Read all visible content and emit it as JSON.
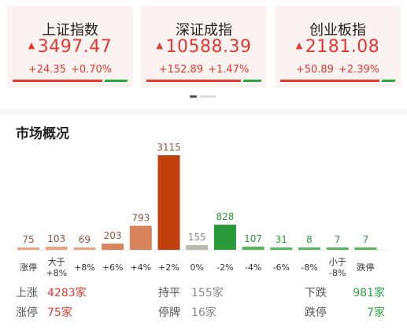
{
  "indices": [
    {
      "name": "上证指数",
      "price": "3497.47",
      "change": "+24.35",
      "pct": "+0.70%",
      "arrow": "▲",
      "red_fraction": 0.78
    },
    {
      "name": "深证成指",
      "price": "10588.39",
      "change": "+152.89",
      "pct": "+1.47%",
      "arrow": "▲",
      "red_fraction": 0.82
    },
    {
      "name": "创业板指",
      "price": "2181.08",
      "change": "+50.89",
      "pct": "+2.39%",
      "arrow": "▲",
      "red_fraction": 0.86
    }
  ],
  "section": {
    "title": "市场概况"
  },
  "chart_data": {
    "type": "bar",
    "categories": [
      "涨停",
      "大于\n+8%",
      "+8%",
      "+6%",
      "+4%",
      "+2%",
      "0%",
      "-2%",
      "-4%",
      "-6%",
      "-8%",
      "小于\n-8%",
      "跌停"
    ],
    "values": [
      75,
      103,
      69,
      203,
      793,
      3115,
      155,
      828,
      107,
      31,
      8,
      7,
      7
    ],
    "colors": [
      "#e8a585",
      "#e8a585",
      "#e8a585",
      "#d9835a",
      "#d9835a",
      "#c2400e",
      "#bdbbae",
      "#2a9a3a",
      "#59b45f",
      "#59b45f",
      "#59b45f",
      "#59b45f",
      "#59b45f"
    ],
    "label_colors": [
      "#8a5540",
      "#8a5540",
      "#8a5540",
      "#8a5540",
      "#8a5540",
      "#8a5540",
      "#888888",
      "#2a9a3a",
      "#2a9a3a",
      "#2a9a3a",
      "#2a9a3a",
      "#2a9a3a",
      "#2a9a3a"
    ],
    "ylim": [
      0,
      3115
    ]
  },
  "summary": {
    "up_label": "上涨",
    "up_value": "4283家",
    "flat_label": "持平",
    "flat_value": "155家",
    "down_label": "下跌",
    "down_value": "981家",
    "limit_up_label": "涨停",
    "limit_up_value": "75家",
    "suspended_label": "停牌",
    "suspended_value": "16家",
    "limit_down_label": "跌停",
    "limit_down_value": "7家"
  },
  "colors": {
    "up": "#e03a32",
    "down": "#2aa544"
  }
}
